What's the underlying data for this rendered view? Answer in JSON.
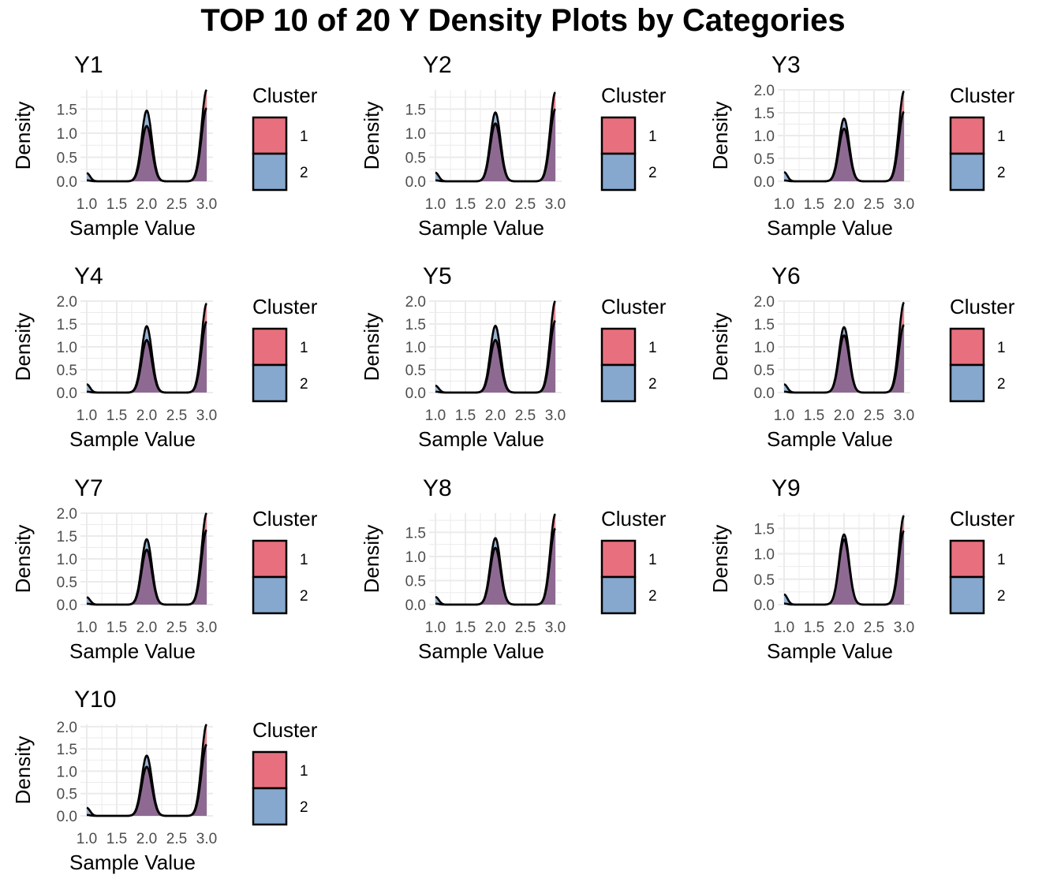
{
  "title": "TOP 10 of 20 Y Density Plots by Categories",
  "colors": {
    "cluster_1": "#E8707E",
    "cluster_2": "#86A8CE",
    "overlap": "#8E6A93",
    "outline": "#000000",
    "grid": "#EBEBEB"
  },
  "chart_data": [
    {
      "type": "area",
      "title": "Y1",
      "xlabel": "Sample Value",
      "ylabel": "Density",
      "xlim": [
        1.0,
        3.0
      ],
      "xticks": [
        "1.0",
        "1.5",
        "2.0",
        "2.5",
        "3.0"
      ],
      "yticks": [
        "0.0",
        "0.5",
        "1.0",
        "1.5"
      ],
      "ylim": [
        0,
        1.9
      ],
      "legend_title": "Cluster",
      "legend_labels": [
        "1",
        "2"
      ],
      "series": [
        {
          "name": "1",
          "peak_left": 0.02,
          "peak_mid": 1.15,
          "peak_right": 1.9
        },
        {
          "name": "2",
          "peak_left": 0.17,
          "peak_mid": 1.47,
          "peak_right": 1.52
        }
      ]
    },
    {
      "type": "area",
      "title": "Y2",
      "xlabel": "Sample Value",
      "ylabel": "Density",
      "xlim": [
        1.0,
        3.0
      ],
      "xticks": [
        "1.0",
        "1.5",
        "2.0",
        "2.5",
        "3.0"
      ],
      "yticks": [
        "0.0",
        "0.5",
        "1.0",
        "1.5"
      ],
      "ylim": [
        0,
        1.9
      ],
      "legend_title": "Cluster",
      "legend_labels": [
        "1",
        "2"
      ],
      "series": [
        {
          "name": "1",
          "peak_left": 0.02,
          "peak_mid": 1.2,
          "peak_right": 1.85
        },
        {
          "name": "2",
          "peak_left": 0.18,
          "peak_mid": 1.43,
          "peak_right": 1.5
        }
      ]
    },
    {
      "type": "area",
      "title": "Y3",
      "xlabel": "Sample Value",
      "ylabel": "Density",
      "xlim": [
        1.0,
        3.0
      ],
      "xticks": [
        "1.0",
        "1.5",
        "2.0",
        "2.5",
        "3.0"
      ],
      "yticks": [
        "0.0",
        "0.5",
        "1.0",
        "1.5",
        "2.0"
      ],
      "ylim": [
        0,
        2.0
      ],
      "legend_title": "Cluster",
      "legend_labels": [
        "1",
        "2"
      ],
      "series": [
        {
          "name": "1",
          "peak_left": 0.02,
          "peak_mid": 1.15,
          "peak_right": 1.97
        },
        {
          "name": "2",
          "peak_left": 0.2,
          "peak_mid": 1.37,
          "peak_right": 1.52
        }
      ]
    },
    {
      "type": "area",
      "title": "Y4",
      "xlabel": "Sample Value",
      "ylabel": "Density",
      "xlim": [
        1.0,
        3.0
      ],
      "xticks": [
        "1.0",
        "1.5",
        "2.0",
        "2.5",
        "3.0"
      ],
      "yticks": [
        "0.0",
        "0.5",
        "1.0",
        "1.5",
        "2.0"
      ],
      "ylim": [
        0,
        2.0
      ],
      "legend_title": "Cluster",
      "legend_labels": [
        "1",
        "2"
      ],
      "series": [
        {
          "name": "1",
          "peak_left": 0.02,
          "peak_mid": 1.15,
          "peak_right": 1.95
        },
        {
          "name": "2",
          "peak_left": 0.18,
          "peak_mid": 1.45,
          "peak_right": 1.55
        }
      ]
    },
    {
      "type": "area",
      "title": "Y5",
      "xlabel": "Sample Value",
      "ylabel": "Density",
      "xlim": [
        1.0,
        3.0
      ],
      "xticks": [
        "1.0",
        "1.5",
        "2.0",
        "2.5",
        "3.0"
      ],
      "yticks": [
        "0.0",
        "0.5",
        "1.0",
        "1.5",
        "2.0"
      ],
      "ylim": [
        0,
        2.0
      ],
      "legend_title": "Cluster",
      "legend_labels": [
        "1",
        "2"
      ],
      "series": [
        {
          "name": "1",
          "peak_left": 0.02,
          "peak_mid": 1.15,
          "peak_right": 2.0
        },
        {
          "name": "2",
          "peak_left": 0.15,
          "peak_mid": 1.46,
          "peak_right": 1.57
        }
      ]
    },
    {
      "type": "area",
      "title": "Y6",
      "xlabel": "Sample Value",
      "ylabel": "Density",
      "xlim": [
        1.0,
        3.0
      ],
      "xticks": [
        "1.0",
        "1.5",
        "2.0",
        "2.5",
        "3.0"
      ],
      "yticks": [
        "0.0",
        "0.5",
        "1.0",
        "1.5",
        "2.0"
      ],
      "ylim": [
        0,
        2.0
      ],
      "legend_title": "Cluster",
      "legend_labels": [
        "1",
        "2"
      ],
      "series": [
        {
          "name": "1",
          "peak_left": 0.02,
          "peak_mid": 1.25,
          "peak_right": 1.97
        },
        {
          "name": "2",
          "peak_left": 0.18,
          "peak_mid": 1.43,
          "peak_right": 1.48
        }
      ]
    },
    {
      "type": "area",
      "title": "Y7",
      "xlabel": "Sample Value",
      "ylabel": "Density",
      "xlim": [
        1.0,
        3.0
      ],
      "xticks": [
        "1.0",
        "1.5",
        "2.0",
        "2.5",
        "3.0"
      ],
      "yticks": [
        "0.0",
        "0.5",
        "1.0",
        "1.5",
        "2.0"
      ],
      "ylim": [
        0,
        2.0
      ],
      "legend_title": "Cluster",
      "legend_labels": [
        "1",
        "2"
      ],
      "series": [
        {
          "name": "1",
          "peak_left": 0.02,
          "peak_mid": 1.2,
          "peak_right": 2.0
        },
        {
          "name": "2",
          "peak_left": 0.16,
          "peak_mid": 1.43,
          "peak_right": 1.63
        }
      ]
    },
    {
      "type": "area",
      "title": "Y8",
      "xlabel": "Sample Value",
      "ylabel": "Density",
      "xlim": [
        1.0,
        3.0
      ],
      "xticks": [
        "1.0",
        "1.5",
        "2.0",
        "2.5",
        "3.0"
      ],
      "yticks": [
        "0.0",
        "0.5",
        "1.0",
        "1.5"
      ],
      "ylim": [
        0,
        1.9
      ],
      "legend_title": "Cluster",
      "legend_labels": [
        "1",
        "2"
      ],
      "series": [
        {
          "name": "1",
          "peak_left": 0.02,
          "peak_mid": 1.18,
          "peak_right": 1.88
        },
        {
          "name": "2",
          "peak_left": 0.16,
          "peak_mid": 1.38,
          "peak_right": 1.58
        }
      ]
    },
    {
      "type": "area",
      "title": "Y9",
      "xlabel": "Sample Value",
      "ylabel": "Density",
      "xlim": [
        1.0,
        3.0
      ],
      "xticks": [
        "1.0",
        "1.5",
        "2.0",
        "2.5",
        "3.0"
      ],
      "yticks": [
        "0.0",
        "0.5",
        "1.0",
        "1.5"
      ],
      "ylim": [
        0,
        1.8
      ],
      "legend_title": "Cluster",
      "legend_labels": [
        "1",
        "2"
      ],
      "series": [
        {
          "name": "1",
          "peak_left": 0.02,
          "peak_mid": 1.28,
          "peak_right": 1.75
        },
        {
          "name": "2",
          "peak_left": 0.2,
          "peak_mid": 1.38,
          "peak_right": 1.45
        }
      ]
    },
    {
      "type": "area",
      "title": "Y10",
      "xlabel": "Sample Value",
      "ylabel": "Density",
      "xlim": [
        1.0,
        3.0
      ],
      "xticks": [
        "1.0",
        "1.5",
        "2.0",
        "2.5",
        "3.0"
      ],
      "yticks": [
        "0.0",
        "0.5",
        "1.0",
        "1.5",
        "2.0"
      ],
      "ylim": [
        0,
        2.05
      ],
      "legend_title": "Cluster",
      "legend_labels": [
        "1",
        "2"
      ],
      "series": [
        {
          "name": "1",
          "peak_left": 0.02,
          "peak_mid": 1.1,
          "peak_right": 2.05
        },
        {
          "name": "2",
          "peak_left": 0.18,
          "peak_mid": 1.35,
          "peak_right": 1.6
        }
      ]
    }
  ]
}
